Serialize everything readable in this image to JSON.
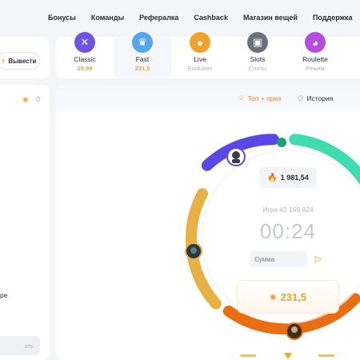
{
  "nav": {
    "items": [
      "Бонусы",
      "Команды",
      "Рефералка",
      "Cashback",
      "Магазин вещей",
      "Поддержка"
    ]
  },
  "wallet": {
    "withdraw_label": "Вывести",
    "balance": "0"
  },
  "modes": [
    {
      "name": "Classic",
      "sub": "29,99",
      "icon": "crossed-swords-icon",
      "color": "#6f53e4",
      "sub_color": "#f5a623"
    },
    {
      "name": "Fast",
      "sub": "231,5",
      "icon": "crown-icon",
      "color": "#55a6ee",
      "sub_color": "#f5a623"
    },
    {
      "name": "Live",
      "sub": "Evolution",
      "icon": "user-icon",
      "color": "#f2a12c"
    },
    {
      "name": "Slots",
      "sub": "Слоты",
      "icon": "cards-icon",
      "color": "#6c6f7c"
    },
    {
      "name": "Roulette",
      "sub": "Режим",
      "icon": "roulette-icon",
      "color": "#b34ee0"
    }
  ],
  "side": {
    "text": "ре",
    "button_label": "ать"
  },
  "toolbar": {
    "top_prize": "Топ + приз",
    "history": "История"
  },
  "game": {
    "hot_value": "1 981,54",
    "game_number": "Игра #2 169 624",
    "timer": "00:24",
    "bet_placeholder": "Сумма",
    "bank": "231,5"
  },
  "colors": {
    "purple": "#5a48e6",
    "mint": "#3fdcb0",
    "green": "#1aa370",
    "orange": "#ea6d12",
    "gold": "#e8b144",
    "accent": "#f5a623"
  }
}
